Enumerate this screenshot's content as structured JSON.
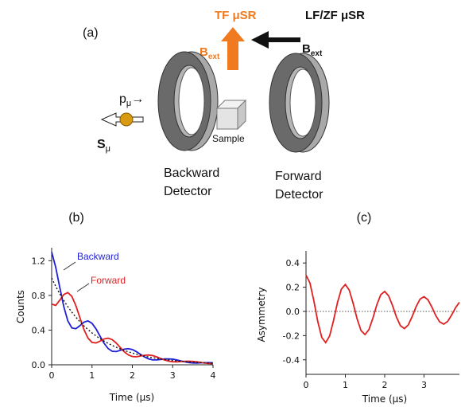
{
  "diagram": {
    "panel_label": "(a)",
    "tf_label": "TF μSR",
    "lf_label": "LF/ZF μSR",
    "tf_field": {
      "symbol": "B",
      "subscript": "ext"
    },
    "lf_field": {
      "symbol": "B",
      "subscript": "ext"
    },
    "momentum": {
      "symbol": "p",
      "subscript": "μ",
      "arrow": "→"
    },
    "spin": {
      "symbol": "S",
      "subscript": "μ"
    },
    "sample": "Sample",
    "backward_detector": [
      "Backward",
      "Detector"
    ],
    "forward_detector": [
      "Forward",
      "Detector"
    ]
  },
  "chart_data": [
    {
      "type": "line",
      "label": "(b)",
      "x_label": "Time (μs)",
      "y_label": "Counts",
      "x": [
        0,
        0.1,
        0.2,
        0.3,
        0.4,
        0.5,
        0.6,
        0.7,
        0.8,
        0.9,
        1,
        1.1,
        1.2,
        1.3,
        1.4,
        1.5,
        1.6,
        1.7,
        1.8,
        1.9,
        2,
        2.1,
        2.2,
        2.3,
        2.4,
        2.5,
        2.6,
        2.7,
        2.8,
        2.9,
        3,
        3.1,
        3.2,
        3.3,
        3.4,
        3.5,
        3.6,
        3.7,
        3.8,
        3.9,
        4
      ],
      "series": [
        {
          "name": "Backward",
          "color": "#1f1fd6",
          "style": "solid",
          "values": [
            1.3,
            1.125,
            0.895,
            0.672,
            0.507,
            0.425,
            0.416,
            0.451,
            0.491,
            0.506,
            0.478,
            0.414,
            0.329,
            0.248,
            0.187,
            0.156,
            0.153,
            0.166,
            0.18,
            0.186,
            0.176,
            0.152,
            0.121,
            0.091,
            0.069,
            0.057,
            0.056,
            0.061,
            0.067,
            0.068,
            0.065,
            0.056,
            0.045,
            0.034,
            0.025,
            0.021,
            0.02,
            0.023,
            0.024,
            0.025,
            0.023
          ]
        },
        {
          "name": "Forward",
          "color": "#e02020",
          "style": "solid",
          "values": [
            0.7,
            0.685,
            0.743,
            0.81,
            0.833,
            0.789,
            0.682,
            0.543,
            0.407,
            0.308,
            0.258,
            0.252,
            0.273,
            0.298,
            0.307,
            0.29,
            0.251,
            0.2,
            0.15,
            0.114,
            0.095,
            0.092,
            0.101,
            0.109,
            0.113,
            0.107,
            0.092,
            0.073,
            0.055,
            0.042,
            0.035,
            0.034,
            0.037,
            0.04,
            0.041,
            0.039,
            0.034,
            0.027,
            0.02,
            0.015,
            0.013
          ]
        },
        {
          "color": "#111111",
          "style": "dotted",
          "values": [
            1,
            0.905,
            0.819,
            0.741,
            0.67,
            0.607,
            0.549,
            0.497,
            0.449,
            0.407,
            0.368,
            0.333,
            0.301,
            0.273,
            0.247,
            0.223,
            0.202,
            0.183,
            0.165,
            0.15,
            0.135,
            0.122,
            0.111,
            0.1,
            0.091,
            0.082,
            0.074,
            0.067,
            0.061,
            0.055,
            0.05,
            0.045,
            0.041,
            0.037,
            0.033,
            0.03,
            0.027,
            0.025,
            0.022,
            0.02,
            0.018
          ]
        }
      ],
      "xlim": [
        0,
        4
      ],
      "ylim": [
        0,
        1.35
      ],
      "xticks": [
        0,
        1,
        2,
        3,
        4
      ],
      "yticks": [
        {
          "value": 0,
          "label": "0.0"
        },
        0.4,
        0.8,
        1.2
      ],
      "zero_line": false
    },
    {
      "type": "line",
      "label": "(c)",
      "x_label": "Time (μs)",
      "y_label": "Asymmetry",
      "x": [
        0,
        0.1,
        0.2,
        0.3,
        0.4,
        0.5,
        0.6,
        0.7,
        0.8,
        0.9,
        1,
        1.1,
        1.2,
        1.3,
        1.4,
        1.5,
        1.6,
        1.7,
        1.8,
        1.9,
        2,
        2.1,
        2.2,
        2.3,
        2.4,
        2.5,
        2.6,
        2.7,
        2.8,
        2.9,
        3,
        3.1,
        3.2,
        3.3,
        3.4,
        3.5,
        3.6,
        3.7,
        3.8,
        3.9
      ],
      "series": [
        {
          "color": "#e02020",
          "style": "solid",
          "values": [
            0.3,
            0.235,
            0.087,
            -0.085,
            -0.215,
            -0.258,
            -0.203,
            -0.075,
            0.073,
            0.185,
            0.222,
            0.175,
            0.065,
            -0.063,
            -0.159,
            -0.191,
            -0.15,
            -0.056,
            0.054,
            0.138,
            0.165,
            0.129,
            0.048,
            -0.047,
            -0.118,
            -0.142,
            -0.112,
            -0.041,
            0.04,
            0.102,
            0.122,
            0.096,
            0.036,
            -0.035,
            -0.087,
            -0.105,
            -0.083,
            -0.031,
            0.03,
            0.075
          ]
        }
      ],
      "xlim": [
        0,
        3.9
      ],
      "ylim": [
        -0.52,
        0.5
      ],
      "xticks": [
        0,
        1,
        2,
        3
      ],
      "yticks": [
        -0.4,
        -0.2,
        {
          "value": 0,
          "label": "0.0"
        },
        0.2,
        0.4
      ],
      "zero_line": true
    }
  ]
}
